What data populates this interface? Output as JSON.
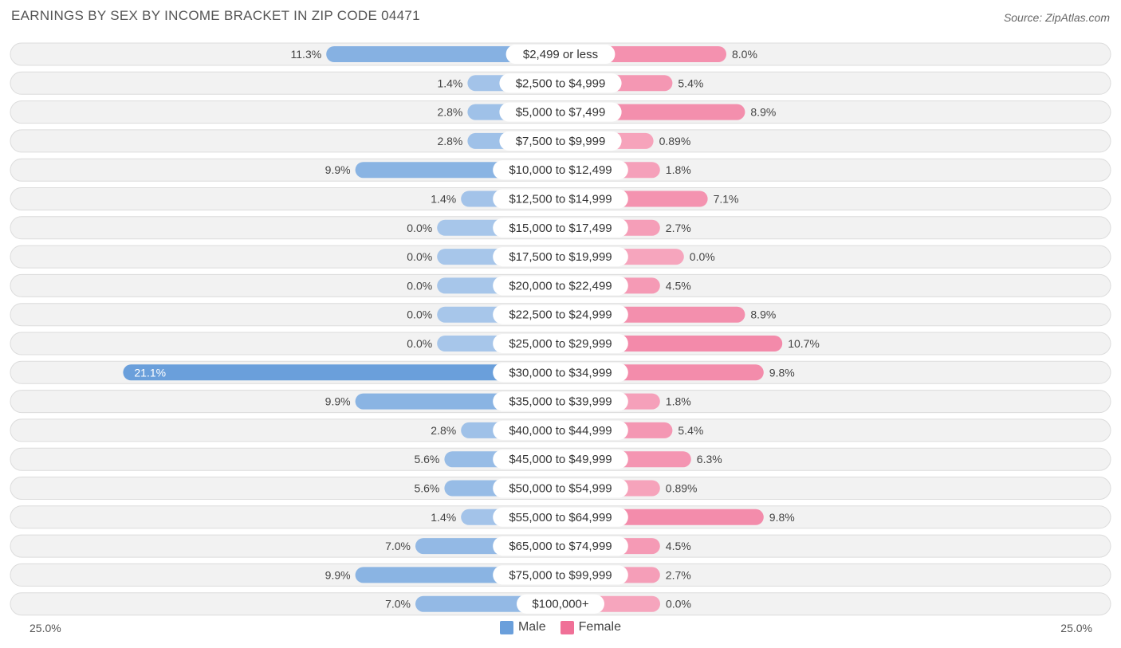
{
  "title": "EARNINGS BY SEX BY INCOME BRACKET IN ZIP CODE 04471",
  "source": "Source: ZipAtlas.com",
  "colors": {
    "male": "#6a9fdb",
    "male_light": "#a7c6ea",
    "female": "#f07097",
    "female_light": "#f6a5bd"
  },
  "legend": {
    "male": "Male",
    "female": "Female"
  },
  "axis": {
    "left_label": "25.0%",
    "right_label": "25.0%"
  },
  "chart_data": {
    "type": "bar",
    "orientation": "horizontal-diverging",
    "title": "EARNINGS BY SEX BY INCOME BRACKET IN ZIP CODE 04471",
    "xlim": [
      -25,
      25
    ],
    "categories": [
      "$2,499 or less",
      "$2,500 to $4,999",
      "$5,000 to $7,499",
      "$7,500 to $9,999",
      "$10,000 to $12,499",
      "$12,500 to $14,999",
      "$15,000 to $17,499",
      "$17,500 to $19,999",
      "$20,000 to $22,499",
      "$22,500 to $24,999",
      "$25,000 to $29,999",
      "$30,000 to $34,999",
      "$35,000 to $39,999",
      "$40,000 to $44,999",
      "$45,000 to $49,999",
      "$50,000 to $54,999",
      "$55,000 to $64,999",
      "$65,000 to $74,999",
      "$75,000 to $99,999",
      "$100,000+"
    ],
    "series": [
      {
        "name": "Male",
        "values": [
          11.3,
          1.4,
          2.8,
          2.8,
          9.9,
          1.4,
          0.0,
          0.0,
          0.0,
          0.0,
          0.0,
          21.1,
          9.9,
          2.8,
          5.6,
          5.6,
          1.4,
          7.0,
          9.9,
          7.0
        ],
        "labels": [
          "11.3%",
          "1.4%",
          "2.8%",
          "2.8%",
          "9.9%",
          "1.4%",
          "0.0%",
          "0.0%",
          "0.0%",
          "0.0%",
          "0.0%",
          "21.1%",
          "9.9%",
          "2.8%",
          "5.6%",
          "5.6%",
          "1.4%",
          "7.0%",
          "9.9%",
          "7.0%"
        ]
      },
      {
        "name": "Female",
        "values": [
          8.0,
          5.4,
          8.9,
          0.89,
          1.8,
          7.1,
          2.7,
          0.0,
          4.5,
          8.9,
          10.7,
          9.8,
          1.8,
          5.4,
          6.3,
          0.89,
          9.8,
          4.5,
          2.7,
          0.0
        ],
        "labels": [
          "8.0%",
          "5.4%",
          "8.9%",
          "0.89%",
          "1.8%",
          "7.1%",
          "2.7%",
          "0.0%",
          "4.5%",
          "8.9%",
          "10.7%",
          "9.8%",
          "1.8%",
          "5.4%",
          "6.3%",
          "0.89%",
          "9.8%",
          "4.5%",
          "2.7%",
          "0.0%"
        ]
      }
    ]
  }
}
